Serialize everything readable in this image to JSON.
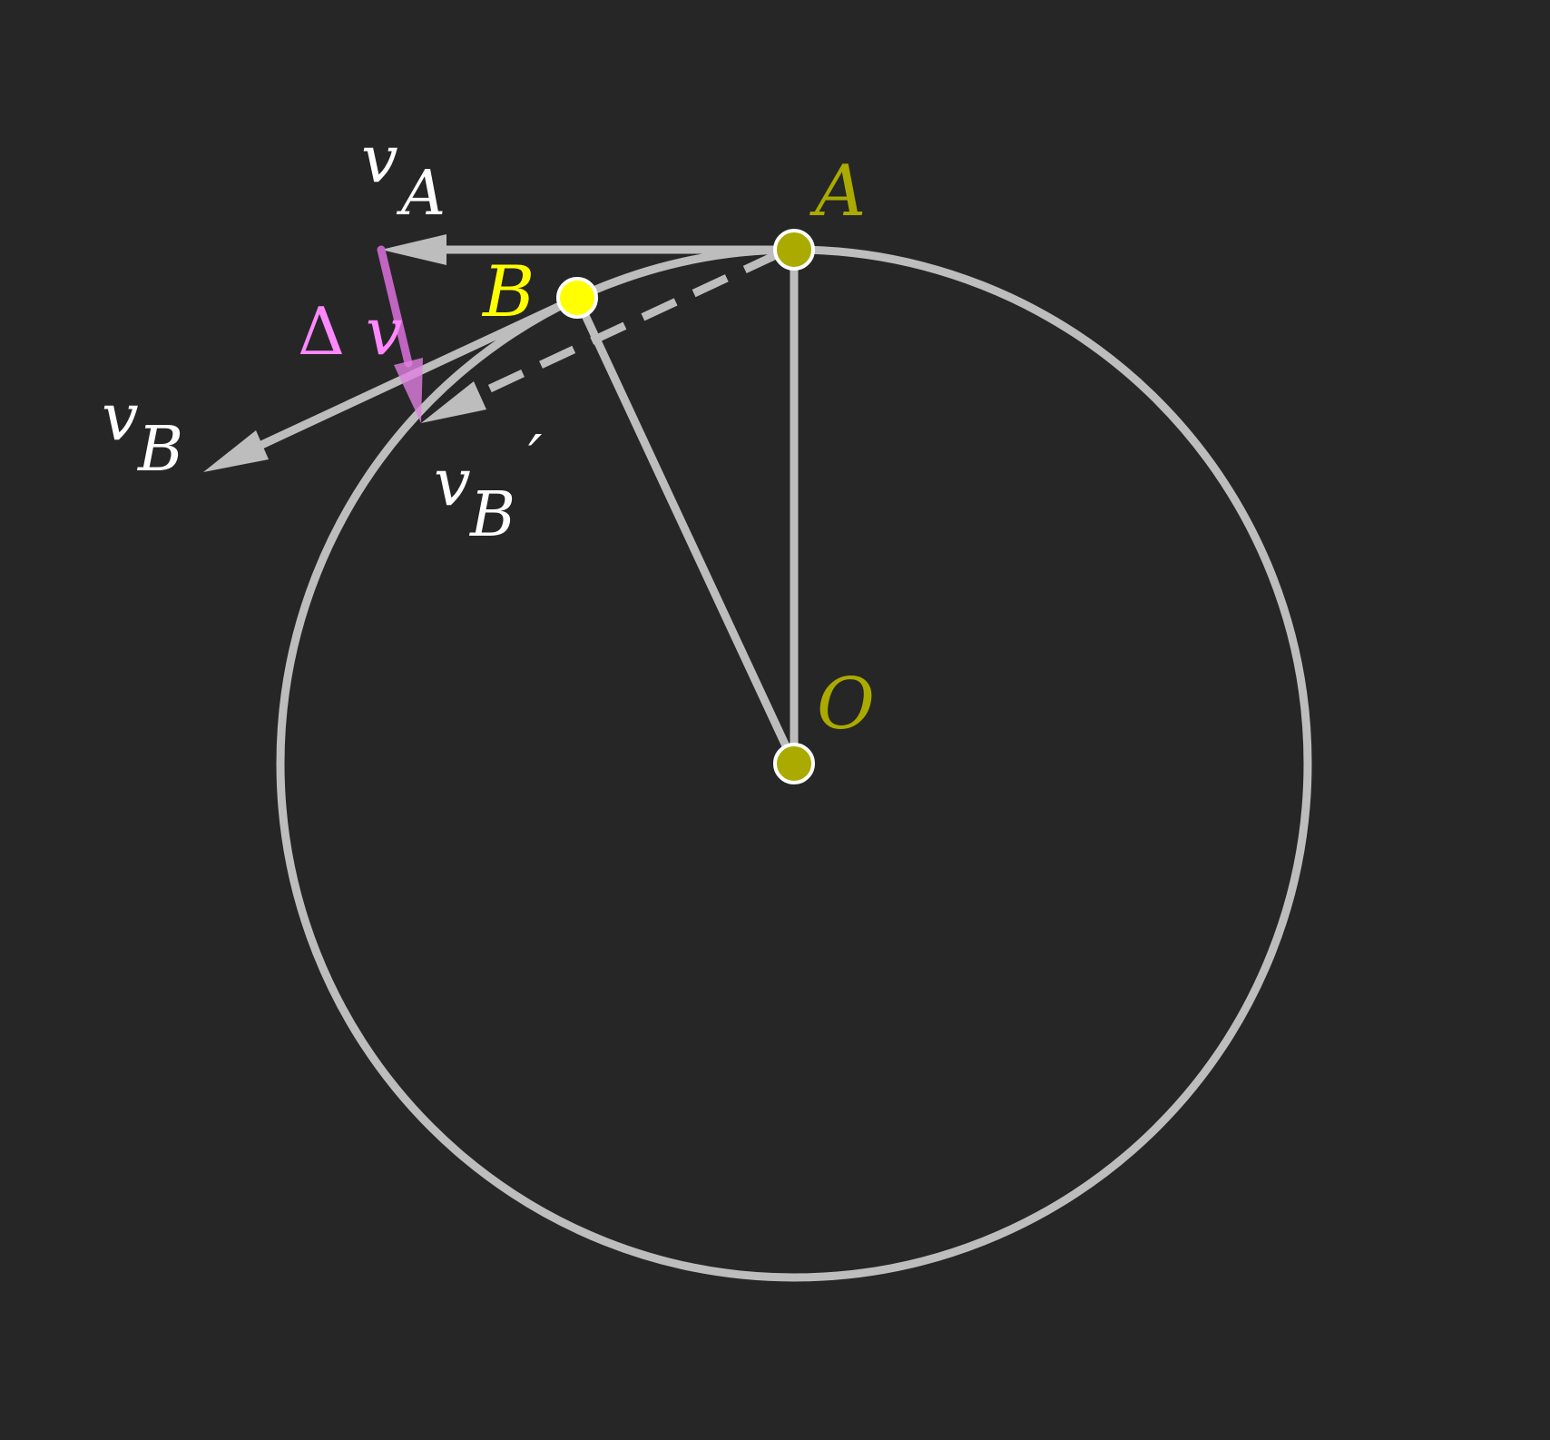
{
  "colors": {
    "background": "#262626",
    "geometry": "#bdbdbd",
    "point_fill": "#aaaa00",
    "point_b_fill": "#ffff00",
    "point_stroke": "#ffffff",
    "label_white": "#ffffff",
    "label_points": "#aaaa00",
    "label_b": "#ffff00",
    "delta_arrow": "#c264c2",
    "delta_label": "#ff88ff"
  },
  "labels": {
    "point_a": "A",
    "point_b": "B",
    "point_o": "O",
    "v": "v",
    "sub_a": "A",
    "sub_b": "B",
    "prime": "′",
    "delta_symbol": "Δ",
    "delta_v": "v"
  }
}
